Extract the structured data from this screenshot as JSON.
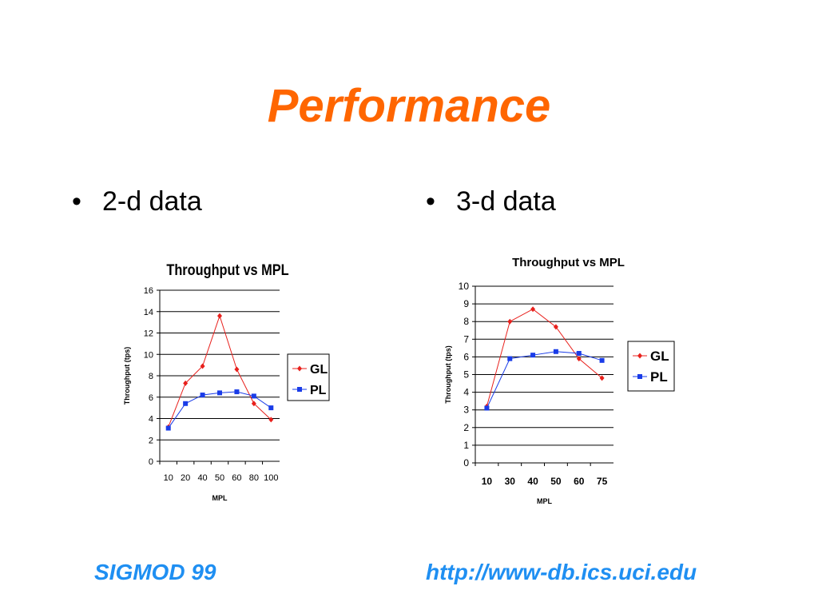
{
  "slide": {
    "title": "Performance",
    "bullets": [
      "2-d data",
      "3-d data"
    ],
    "footer_left": "SIGMOD 99",
    "footer_right": "http://www-db.ics.uci.edu"
  },
  "colors": {
    "title": "#ff6600",
    "footer": "#1f8ff2",
    "gl_series": "#e8201c",
    "pl_series": "#1a3ce8",
    "gridline": "#000000"
  },
  "chart_data": [
    {
      "type": "line",
      "title": "Throughput vs MPL",
      "xlabel": "MPL",
      "ylabel": "Throughput (tps)",
      "categories": [
        "10",
        "20",
        "40",
        "50",
        "60",
        "80",
        "100"
      ],
      "ylim": [
        0,
        16
      ],
      "yticks": [
        0,
        2,
        4,
        6,
        8,
        10,
        12,
        14,
        16
      ],
      "grid": true,
      "legend_position": "right",
      "series": [
        {
          "name": "GL",
          "marker": "diamond",
          "values": [
            3.2,
            7.3,
            8.9,
            13.6,
            8.6,
            5.4,
            3.9
          ]
        },
        {
          "name": "PL",
          "marker": "square",
          "values": [
            3.1,
            5.4,
            6.2,
            6.4,
            6.5,
            6.1,
            5.0
          ]
        }
      ]
    },
    {
      "type": "line",
      "title": "Throughput vs MPL",
      "xlabel": "MPL",
      "ylabel": "Throughput (tps)",
      "categories": [
        "10",
        "30",
        "40",
        "50",
        "60",
        "75"
      ],
      "ylim": [
        0,
        10
      ],
      "yticks": [
        0,
        1,
        2,
        3,
        4,
        5,
        6,
        7,
        8,
        9,
        10
      ],
      "grid": true,
      "legend_position": "right",
      "series": [
        {
          "name": "GL",
          "marker": "diamond",
          "values": [
            3.2,
            8.0,
            8.7,
            7.7,
            5.9,
            4.8
          ]
        },
        {
          "name": "PL",
          "marker": "square",
          "values": [
            3.1,
            5.9,
            6.1,
            6.3,
            6.2,
            5.8
          ]
        }
      ]
    }
  ]
}
